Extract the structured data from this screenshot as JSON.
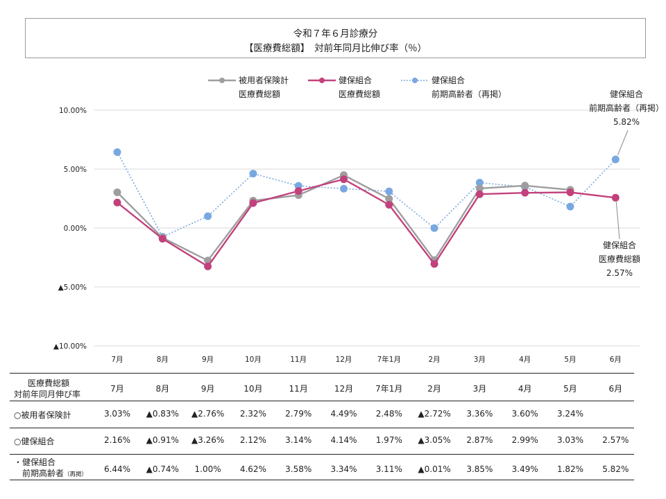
{
  "title": {
    "line1": "令和７年６月診療分",
    "line2": "【医療費総額】　対前年同月比伸び率（％）"
  },
  "colors": {
    "employee": "#9e9e9e",
    "kenpo": "#c2417c",
    "kenpo_elderly": "#79a8e0",
    "grid": "#d9d9d9"
  },
  "legend": [
    {
      "line1": "被用者保険計",
      "line2": "医療費総額",
      "style": "solid",
      "color": "#9e9e9e"
    },
    {
      "line1": "健保組合",
      "line2": "医療費総額",
      "style": "solid",
      "color": "#c2417c"
    },
    {
      "line1": "健保組合",
      "line2": "前期高齢者（再掲）",
      "style": "dotted",
      "color": "#79a8e0"
    }
  ],
  "callouts": {
    "elderly": {
      "line1": "健保組合",
      "line2": "前期高齢者（再掲）",
      "value": "5.82%"
    },
    "kenpo": {
      "line1": "健保組合",
      "line2": "医療費総額",
      "value": "2.57%"
    }
  },
  "chart_data": {
    "type": "line",
    "categories": [
      "7月",
      "8月",
      "9月",
      "10月",
      "11月",
      "12月",
      "7年1月",
      "2月",
      "3月",
      "4月",
      "5月",
      "6月"
    ],
    "y_ticks": [
      {
        "value": 10,
        "label": "10.00%"
      },
      {
        "value": 5,
        "label": "5.00%"
      },
      {
        "value": 0,
        "label": "0.00%"
      },
      {
        "value": -5,
        "label": "▲5.00%"
      },
      {
        "value": -10,
        "label": "▲10.00%"
      }
    ],
    "ylim": [
      -10,
      10
    ],
    "grid": true,
    "legend_position": "top",
    "series": [
      {
        "name": "被用者保険計 医療費総額",
        "key": "employee",
        "values": [
          3.03,
          -0.83,
          -2.76,
          2.32,
          2.79,
          4.49,
          2.48,
          -2.72,
          3.36,
          3.6,
          3.24,
          null
        ]
      },
      {
        "name": "健保組合 医療費総額",
        "key": "kenpo",
        "values": [
          2.16,
          -0.91,
          -3.26,
          2.12,
          3.14,
          4.14,
          1.97,
          -3.05,
          2.87,
          2.99,
          3.03,
          2.57
        ]
      },
      {
        "name": "健保組合 前期高齢者（再掲）",
        "key": "kenpo_elderly",
        "values": [
          6.44,
          -0.74,
          1.0,
          4.62,
          3.58,
          3.34,
          3.11,
          -0.01,
          3.85,
          3.49,
          1.82,
          5.82
        ]
      }
    ]
  },
  "table": {
    "header_label_line1": "医療費総額",
    "header_label_line2": "対前年同月伸び率",
    "months": [
      "7月",
      "8月",
      "9月",
      "10月",
      "11月",
      "12月",
      "7年1月",
      "2月",
      "3月",
      "4月",
      "5月",
      "6月"
    ],
    "rows": [
      {
        "label": "○被用者保険計",
        "cells": [
          "3.03%",
          "▲0.83%",
          "▲2.76%",
          "2.32%",
          "2.79%",
          "4.49%",
          "2.48%",
          "▲2.72%",
          "3.36%",
          "3.60%",
          "3.24%",
          ""
        ]
      },
      {
        "label": "○健保組合",
        "cells": [
          "2.16%",
          "▲0.91%",
          "▲3.26%",
          "2.12%",
          "3.14%",
          "4.14%",
          "1.97%",
          "▲3.05%",
          "2.87%",
          "2.99%",
          "3.03%",
          "2.57%"
        ]
      },
      {
        "label_line1": "・健保組合",
        "label_line2": "前期高齢者",
        "label_suffix": "（再掲）",
        "cells": [
          "6.44%",
          "▲0.74%",
          "1.00%",
          "4.62%",
          "3.58%",
          "3.34%",
          "3.11%",
          "▲0.01%",
          "3.85%",
          "3.49%",
          "1.82%",
          "5.82%"
        ]
      }
    ]
  }
}
